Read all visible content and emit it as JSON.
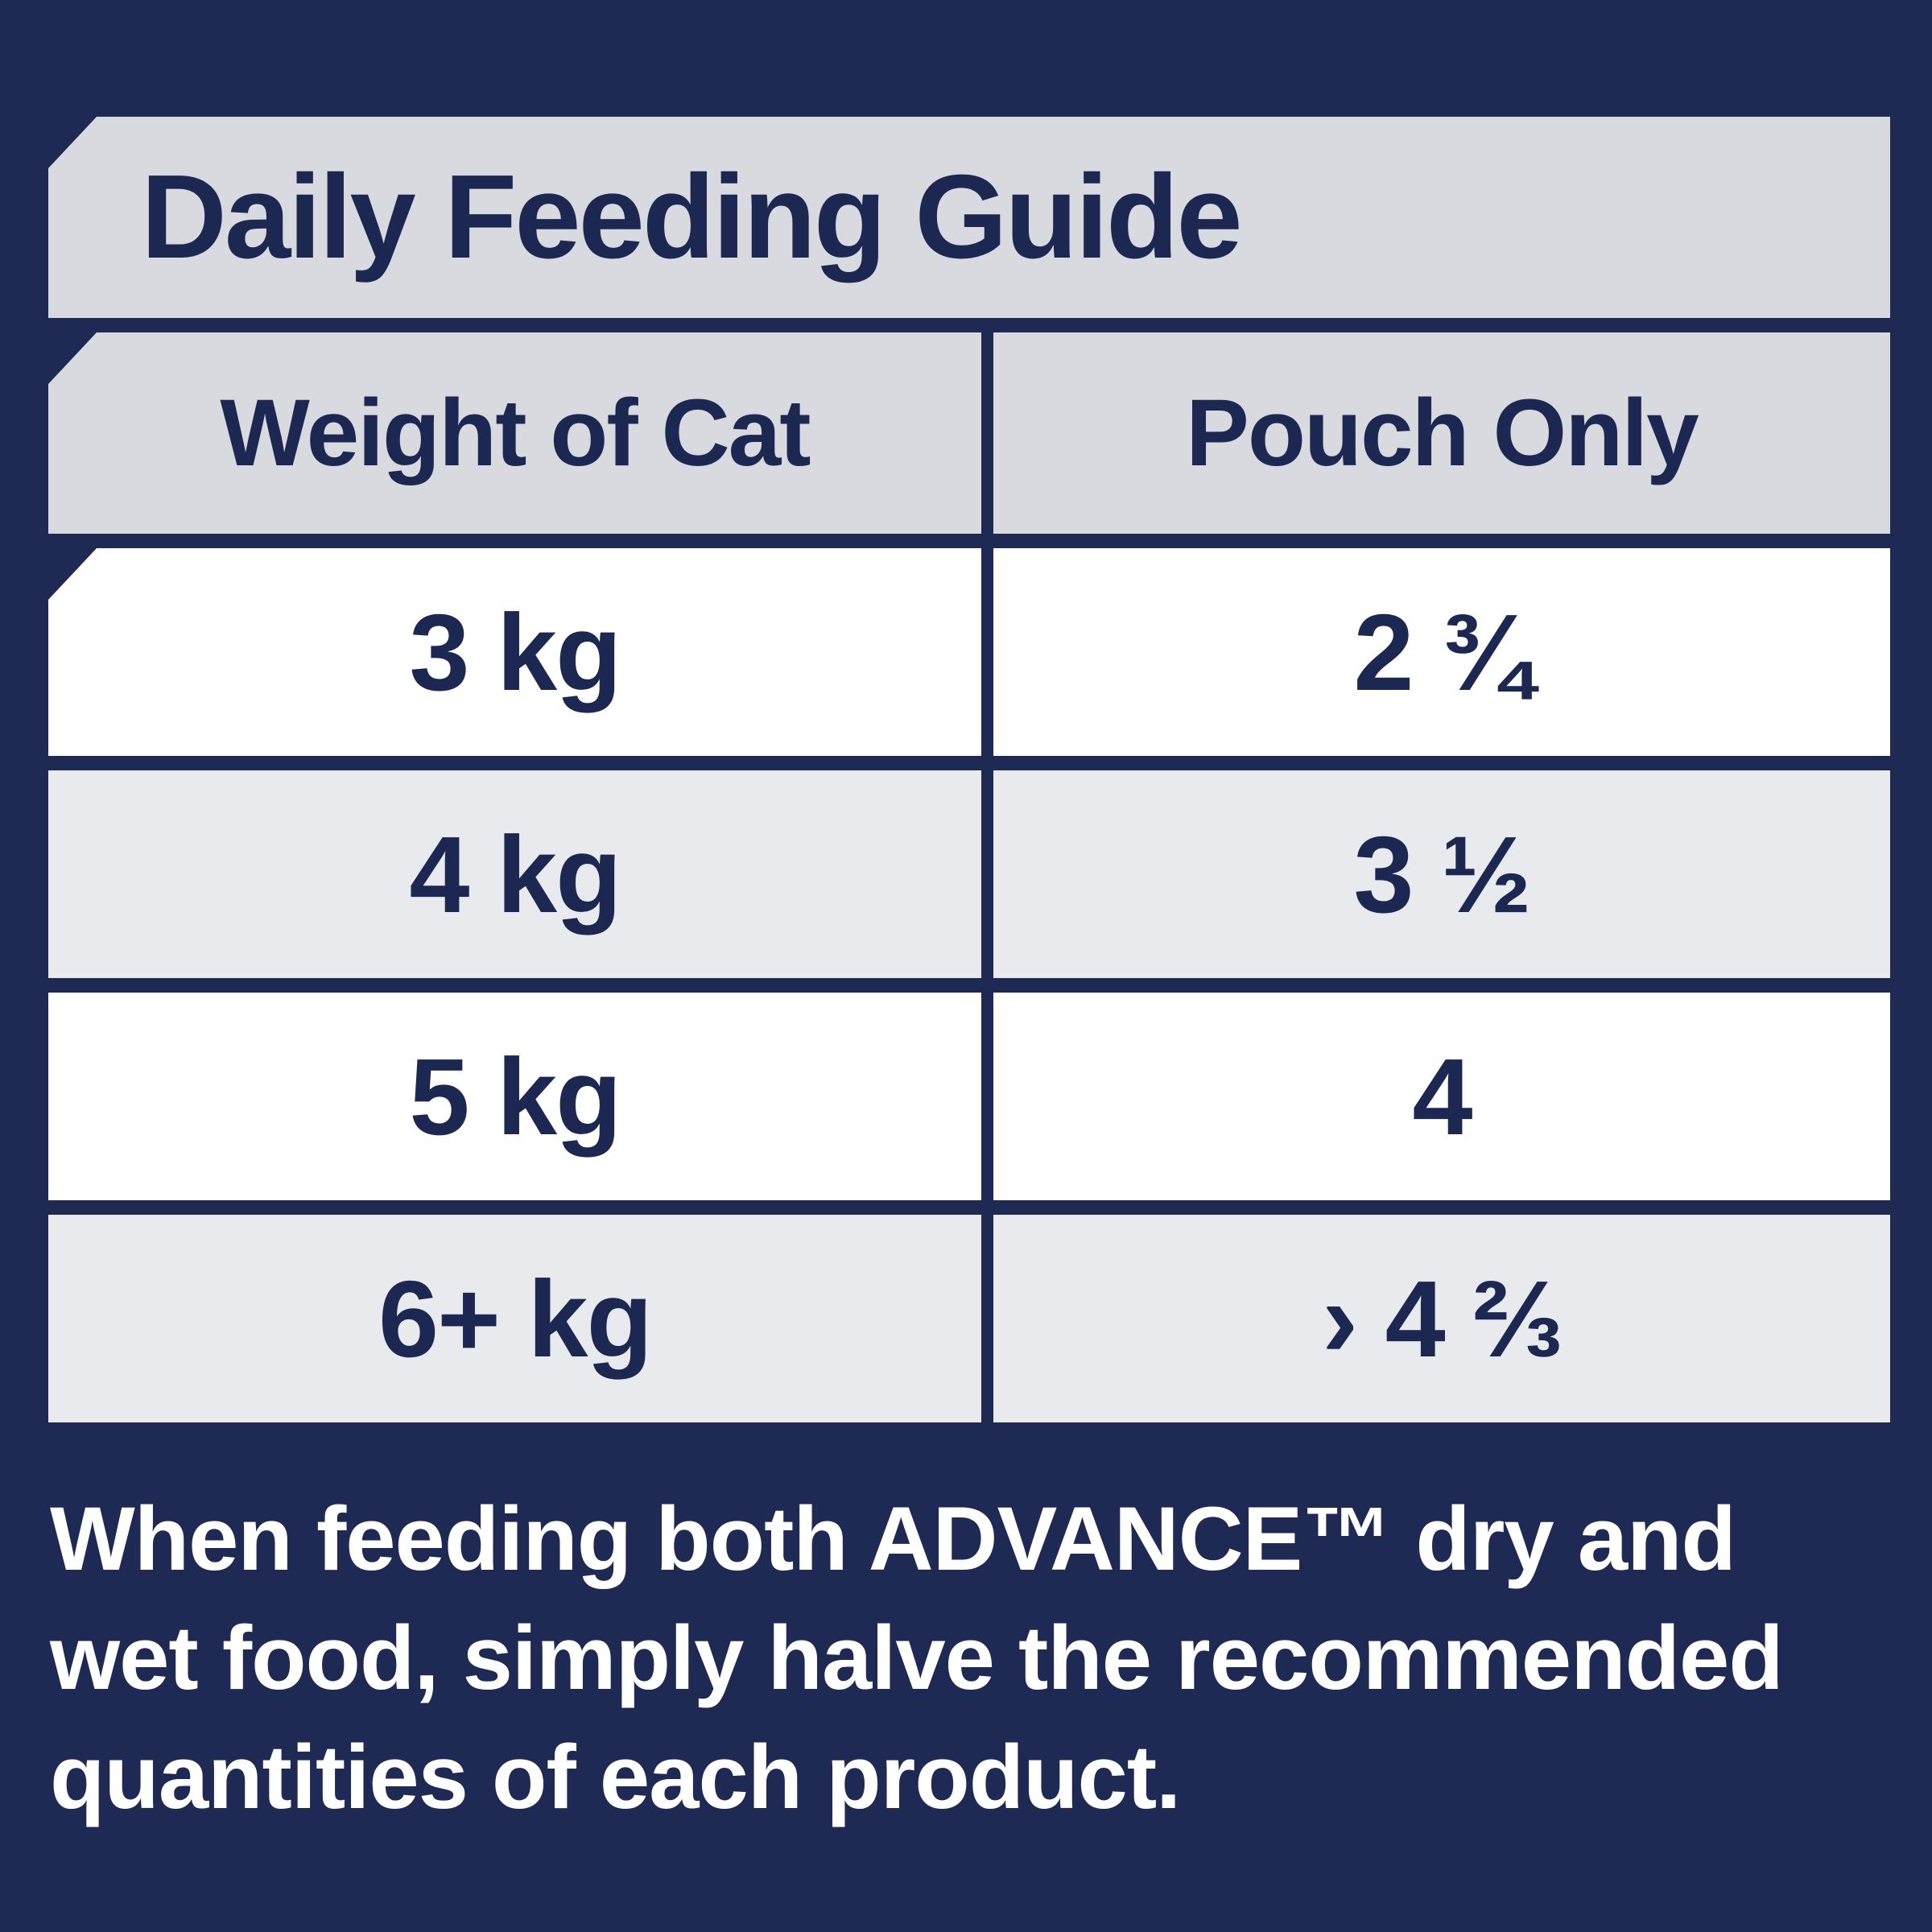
{
  "panel": {
    "title": "Daily Feeding Guide",
    "columns": {
      "weight": "Weight of Cat",
      "pouch": "Pouch Only"
    },
    "rows": [
      {
        "weight": "3 kg",
        "pouch": "2 ¾"
      },
      {
        "weight": "4 kg",
        "pouch": "3 ½"
      },
      {
        "weight": "5 kg",
        "pouch": "4"
      },
      {
        "weight": "6+ kg",
        "pouch": "› 4 ⅔"
      }
    ],
    "note_lines": [
      "When feeding both ADVANCE™ dry and",
      "wet food, simply halve the recommended",
      "quantities of each product."
    ],
    "colors": {
      "background_navy": "#1f2a54",
      "text_navy": "#1d2852",
      "band_gray": "#d8dadf",
      "row_gray": "#e8eaee",
      "row_white": "#ffffff",
      "note_text": "#ffffff"
    }
  }
}
